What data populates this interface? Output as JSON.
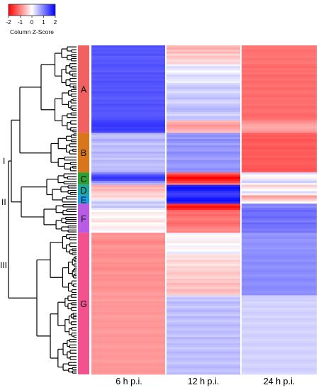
{
  "chart_data": {
    "type": "heatmap",
    "legend": {
      "title": "Column Z-Score",
      "ticks": [
        "-2",
        "-1",
        "0",
        "1",
        "2"
      ],
      "range": [
        -2,
        2
      ],
      "low_color": "#ff0000",
      "mid_color": "#ffffff",
      "high_color": "#0000ff"
    },
    "columns": [
      "6 h p.i.",
      "12 h p.i.",
      "24 h p.i."
    ],
    "clusters": [
      {
        "label": "A",
        "color": "#f26161",
        "rows": 42,
        "values": [
          [
            1.4,
            1.3,
            1.35,
            1.3,
            1.4,
            1.25,
            1.3,
            1.35,
            1.3,
            1.4,
            1.35,
            1.3,
            1.25,
            1.4,
            1.3,
            1.35,
            1.3,
            1.4,
            1.35,
            1.3,
            1.35,
            1.3,
            1.4,
            1.35,
            1.3,
            1.25,
            1.35,
            1.3,
            1.4,
            1.35,
            1.3,
            1.35,
            1.3,
            1.3,
            1.35,
            1.4,
            1.5,
            1.55,
            1.6,
            1.5,
            1.55,
            1.45
          ],
          [
            -0.55,
            -0.7,
            -0.45,
            -0.6,
            -0.3,
            -0.5,
            -0.4,
            -0.25,
            -0.4,
            0.1,
            0.3,
            0.2,
            0.0,
            0.15,
            0.35,
            0.25,
            0.2,
            0.1,
            0.3,
            0.4,
            0.5,
            0.35,
            0.25,
            0.4,
            0.45,
            0.55,
            0.35,
            0.3,
            0.45,
            0.5,
            0.6,
            0.55,
            0.4,
            0.3,
            0.5,
            0.45,
            -0.55,
            -0.7,
            -0.85,
            -0.75,
            -0.65,
            -0.5
          ],
          [
            -1.1,
            -1.05,
            -1.15,
            -1.1,
            -1.1,
            -1.05,
            -1.15,
            -1.1,
            -1.05,
            -1.15,
            -1.2,
            -1.1,
            -1.15,
            -1.1,
            -1.2,
            -1.15,
            -1.1,
            -1.2,
            -1.15,
            -1.1,
            -1.2,
            -1.15,
            -1.1,
            -1.15,
            -1.2,
            -1.1,
            -1.15,
            -1.15,
            -1.1,
            -1.2,
            -1.15,
            -1.1,
            -1.15,
            -1.2,
            -1.15,
            -1.1,
            -0.9,
            -0.8,
            -0.7,
            -0.65,
            -0.75,
            -0.85
          ]
        ]
      },
      {
        "label": "B",
        "color": "#d9761c",
        "rows": 19,
        "values": [
          [
            0.6,
            0.45,
            0.5,
            0.7,
            0.55,
            0.4,
            0.6,
            0.5,
            0.45,
            0.65,
            0.5,
            0.55,
            0.4,
            0.6,
            0.5,
            0.45,
            0.55,
            0.5,
            0.6
          ],
          [
            0.8,
            0.9,
            0.75,
            0.95,
            0.85,
            0.7,
            0.9,
            0.8,
            0.75,
            0.95,
            0.85,
            0.8,
            0.7,
            0.9,
            0.85,
            0.75,
            0.8,
            0.9,
            0.85
          ],
          [
            -1.25,
            -1.3,
            -1.25,
            -1.35,
            -1.3,
            -1.25,
            -1.3,
            -1.35,
            -1.25,
            -1.3,
            -1.3,
            -1.25,
            -1.35,
            -1.3,
            -1.25,
            -1.3,
            -1.3,
            -1.35,
            -1.3
          ]
        ]
      },
      {
        "label": "C",
        "color": "#2f9e34",
        "rows": 6,
        "values": [
          [
            1.0,
            1.4,
            1.6,
            1.5,
            0.9,
            0.6
          ],
          [
            -1.2,
            -1.6,
            -2.0,
            -1.8,
            -1.5,
            -1.1
          ],
          [
            0.3,
            0.0,
            -0.1,
            0.2,
            0.4,
            0.1
          ]
        ]
      },
      {
        "label": "D",
        "color": "#1aa6a2",
        "rows": 5,
        "values": [
          [
            -0.7,
            -0.5,
            -0.6,
            -0.4,
            -0.3
          ],
          [
            1.7,
            1.9,
            1.8,
            1.6,
            1.5
          ],
          [
            -0.4,
            -0.2,
            0.0,
            0.3,
            -0.1
          ]
        ]
      },
      {
        "label": "E",
        "color": "#1a9ee6",
        "rows": 4,
        "values": [
          [
            -0.4,
            -0.2,
            0.2,
            0.5
          ],
          [
            1.6,
            1.8,
            1.9,
            1.7
          ],
          [
            -0.8,
            -0.6,
            -0.3,
            0.0
          ]
        ]
      },
      {
        "label": "F",
        "color": "#b85ce6",
        "rows": 14,
        "values": [
          [
            0.3,
            0.5,
            0.2,
            0.0,
            -0.2,
            -0.1,
            0.0,
            -0.2,
            -0.3,
            0.0,
            -0.1,
            -0.2,
            0.1,
            0.0
          ],
          [
            -1.6,
            -1.9,
            -1.7,
            -1.2,
            -1.1,
            -1.2,
            -1.1,
            -1.0,
            -1.1,
            -1.2,
            -1.1,
            -1.0,
            -0.9,
            -1.0
          ],
          [
            1.0,
            0.9,
            1.1,
            1.2,
            1.1,
            1.1,
            1.2,
            1.1,
            1.0,
            1.2,
            1.1,
            1.1,
            1.0,
            1.1
          ]
        ]
      },
      {
        "label": "G",
        "color": "#f2538e",
        "rows": 68,
        "values": [
          [
            -0.9,
            -0.8,
            -0.85,
            -0.9,
            -1.0,
            -0.9,
            -0.8,
            -0.85,
            -0.9,
            -0.85,
            -0.95,
            -0.9,
            -0.85,
            -0.8,
            -0.9,
            -0.85,
            -0.9,
            -0.95,
            -0.85,
            -0.8,
            -0.9,
            -0.85,
            -0.9,
            -0.85,
            -0.8,
            -0.85,
            -0.9,
            -0.85,
            -0.8,
            -0.75,
            -0.85,
            -0.8,
            -0.75,
            -0.85,
            -0.8,
            -0.85,
            -0.8,
            -0.8,
            -0.85,
            -0.8,
            -0.75,
            -0.8,
            -0.85,
            -0.8,
            -0.8,
            -0.85,
            -0.8,
            -0.75,
            -0.8,
            -0.85,
            -0.8,
            -0.8,
            -0.85,
            -0.8,
            -0.75,
            -0.8,
            -0.85,
            -0.8,
            -0.8,
            -0.85,
            -0.8,
            -0.75,
            -0.8,
            -0.85,
            -0.8,
            -0.8,
            -0.85,
            -0.8
          ],
          [
            0.1,
            0.0,
            -0.1,
            0.1,
            -0.2,
            0.0,
            0.1,
            -0.1,
            0.0,
            0.2,
            -0.2,
            -0.3,
            -0.2,
            -0.4,
            -0.3,
            -0.2,
            -0.4,
            -0.3,
            -0.4,
            -0.5,
            -0.4,
            -0.3,
            -0.5,
            -0.4,
            -0.6,
            -0.5,
            -0.4,
            -0.6,
            -0.5,
            -0.4,
            0.3,
            0.5,
            0.4,
            0.6,
            0.5,
            0.4,
            0.5,
            0.6,
            0.5,
            0.4,
            0.6,
            0.5,
            0.4,
            0.5,
            0.6,
            0.5,
            0.45,
            0.55,
            0.5,
            0.4,
            0.6,
            0.5,
            0.45,
            0.55,
            0.5,
            0.4,
            0.5,
            0.6,
            0.5,
            0.45,
            0.55,
            0.5,
            0.4,
            0.5,
            0.6,
            0.5,
            0.45,
            0.55
          ],
          [
            0.8,
            0.85,
            0.9,
            0.8,
            0.85,
            0.9,
            0.85,
            0.8,
            0.9,
            0.85,
            0.9,
            0.95,
            0.9,
            0.85,
            0.95,
            0.9,
            0.85,
            0.9,
            0.95,
            0.9,
            0.85,
            0.9,
            0.95,
            0.9,
            0.85,
            0.9,
            0.95,
            0.9,
            0.85,
            0.9,
            0.4,
            0.35,
            0.4,
            0.3,
            0.35,
            0.4,
            0.3,
            0.35,
            0.4,
            0.35,
            0.3,
            0.4,
            0.35,
            0.3,
            0.35,
            0.4,
            0.35,
            0.3,
            0.35,
            0.4,
            0.35,
            0.3,
            0.35,
            0.4,
            0.35,
            0.3,
            0.35,
            0.4,
            0.35,
            0.3,
            0.35,
            0.4,
            0.35,
            0.3,
            0.35,
            0.4,
            0.35,
            0.3
          ]
        ]
      }
    ],
    "dendrogram_groups": [
      "I",
      "II",
      "III"
    ]
  }
}
